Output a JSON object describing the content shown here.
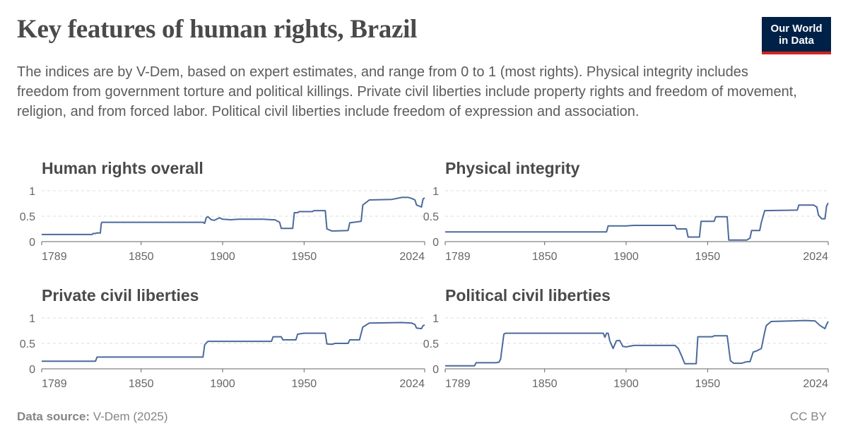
{
  "header": {
    "title": "Key features of human rights, Brazil",
    "subtitle": "The indices are by V-Dem, based on expert estimates, and range from 0 to 1 (most rights). Physical integrity includes freedom from government torture and political killings. Private civil liberties include property rights and freedom of movement, religion, and from forced labor. Political civil liberties include freedom of expression and association."
  },
  "logo": {
    "line1": "Our World",
    "line2": "in Data"
  },
  "footer": {
    "source_label": "Data source:",
    "source_value": "V-Dem (2025)",
    "license": "CC BY"
  },
  "colors": {
    "line": "#4c6a9c",
    "grid": "#dddddd",
    "axis": "#666666",
    "title": "#4a4a4a",
    "tick": "#666666"
  },
  "chart_data": [
    {
      "type": "line",
      "title": "Human rights overall",
      "xlim": [
        1789,
        2024
      ],
      "ylim": [
        0,
        1
      ],
      "x_ticks": [
        1789,
        1850,
        1900,
        1950,
        2024
      ],
      "y_ticks": [
        {
          "value": 0,
          "label": "0"
        },
        {
          "value": 0.5,
          "label": "0.5"
        },
        {
          "value": 1,
          "label": "1"
        }
      ],
      "grid": true,
      "x": [
        1789,
        1820,
        1820.5,
        1822,
        1822.5,
        1825,
        1825.5,
        1826,
        1888,
        1889,
        1890,
        1891,
        1893,
        1895,
        1898,
        1900,
        1905,
        1910,
        1925,
        1930,
        1932,
        1935,
        1936,
        1943,
        1944,
        1946,
        1947,
        1955,
        1956,
        1963,
        1964,
        1967,
        1969,
        1977,
        1978,
        1985,
        1986,
        1990,
        2004,
        2010,
        2014,
        2016,
        2018,
        2019,
        2022,
        2023,
        2024
      ],
      "y": [
        0.14,
        0.14,
        0.16,
        0.16,
        0.17,
        0.17,
        0.35,
        0.38,
        0.38,
        0.36,
        0.47,
        0.49,
        0.43,
        0.42,
        0.47,
        0.44,
        0.43,
        0.44,
        0.44,
        0.43,
        0.43,
        0.38,
        0.26,
        0.26,
        0.57,
        0.57,
        0.59,
        0.59,
        0.61,
        0.61,
        0.25,
        0.21,
        0.21,
        0.22,
        0.37,
        0.4,
        0.72,
        0.82,
        0.83,
        0.87,
        0.87,
        0.85,
        0.82,
        0.72,
        0.68,
        0.84,
        0.86
      ]
    },
    {
      "type": "line",
      "title": "Physical integrity",
      "xlim": [
        1789,
        2024
      ],
      "ylim": [
        0,
        1
      ],
      "x_ticks": [
        1789,
        1850,
        1900,
        1950,
        2024
      ],
      "y_ticks": [
        {
          "value": 0,
          "label": "0"
        },
        {
          "value": 0.5,
          "label": "0.5"
        },
        {
          "value": 1,
          "label": "1"
        }
      ],
      "grid": true,
      "x": [
        1789,
        1888,
        1889,
        1900,
        1905,
        1930,
        1931,
        1937,
        1938,
        1945,
        1946,
        1954,
        1955,
        1962,
        1963,
        1974,
        1976,
        1977,
        1982,
        1983,
        1985,
        2005,
        2006,
        2015,
        2017,
        2018,
        2020,
        2022,
        2023,
        2024
      ],
      "y": [
        0.19,
        0.19,
        0.31,
        0.31,
        0.32,
        0.32,
        0.25,
        0.25,
        0.09,
        0.09,
        0.4,
        0.4,
        0.49,
        0.49,
        0.03,
        0.03,
        0.07,
        0.22,
        0.22,
        0.38,
        0.61,
        0.62,
        0.72,
        0.72,
        0.68,
        0.52,
        0.45,
        0.45,
        0.7,
        0.76
      ]
    },
    {
      "type": "line",
      "title": "Private civil liberties",
      "xlim": [
        1789,
        2024
      ],
      "ylim": [
        0,
        1
      ],
      "x_ticks": [
        1789,
        1850,
        1900,
        1950,
        2024
      ],
      "y_ticks": [
        {
          "value": 0,
          "label": "0"
        },
        {
          "value": 0.5,
          "label": "0.5"
        },
        {
          "value": 1,
          "label": "1"
        }
      ],
      "grid": true,
      "x": [
        1789,
        1822,
        1823,
        1888,
        1889,
        1890,
        1891,
        1930,
        1931,
        1936,
        1937,
        1945,
        1946,
        1950,
        1963,
        1964,
        1967,
        1969,
        1977,
        1978,
        1984,
        1986,
        1990,
        2010,
        2016,
        2018,
        2019,
        2022,
        2023,
        2024
      ],
      "y": [
        0.15,
        0.15,
        0.23,
        0.23,
        0.47,
        0.51,
        0.54,
        0.54,
        0.63,
        0.63,
        0.57,
        0.57,
        0.68,
        0.7,
        0.7,
        0.49,
        0.48,
        0.5,
        0.5,
        0.57,
        0.57,
        0.82,
        0.9,
        0.91,
        0.9,
        0.87,
        0.8,
        0.79,
        0.85,
        0.86
      ]
    },
    {
      "type": "line",
      "title": "Political civil liberties",
      "xlim": [
        1789,
        2024
      ],
      "ylim": [
        0,
        1
      ],
      "x_ticks": [
        1789,
        1850,
        1900,
        1950,
        2024
      ],
      "y_ticks": [
        {
          "value": 0,
          "label": "0"
        },
        {
          "value": 0.5,
          "label": "0.5"
        },
        {
          "value": 1,
          "label": "1"
        }
      ],
      "grid": true,
      "x": [
        1789,
        1807,
        1808,
        1820,
        1822,
        1823,
        1825,
        1826,
        1886,
        1887,
        1888,
        1889,
        1890,
        1892,
        1894,
        1896,
        1898,
        1900,
        1905,
        1930,
        1932,
        1934,
        1936,
        1943,
        1944,
        1946,
        1953,
        1954,
        1962,
        1964,
        1966,
        1971,
        1974,
        1976,
        1978,
        1980,
        1983,
        1985,
        1986,
        1989,
        2001,
        2010,
        2016,
        2019,
        2022,
        2023,
        2024
      ],
      "y": [
        0.06,
        0.06,
        0.12,
        0.12,
        0.13,
        0.19,
        0.68,
        0.7,
        0.7,
        0.62,
        0.7,
        0.7,
        0.55,
        0.4,
        0.55,
        0.56,
        0.44,
        0.43,
        0.46,
        0.46,
        0.4,
        0.26,
        0.1,
        0.1,
        0.63,
        0.63,
        0.63,
        0.65,
        0.65,
        0.16,
        0.11,
        0.11,
        0.14,
        0.14,
        0.33,
        0.35,
        0.4,
        0.72,
        0.85,
        0.93,
        0.94,
        0.95,
        0.94,
        0.85,
        0.79,
        0.87,
        0.93
      ]
    }
  ]
}
